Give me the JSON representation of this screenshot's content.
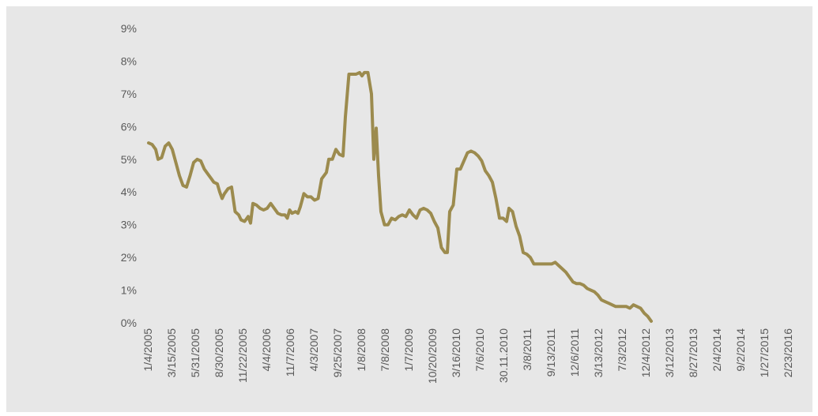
{
  "chart_data": {
    "type": "line",
    "title": "",
    "xlabel": "",
    "ylabel": "",
    "ylim": [
      0,
      9
    ],
    "y_ticks": [
      "0%",
      "1%",
      "2%",
      "3%",
      "4%",
      "5%",
      "6%",
      "7%",
      "8%",
      "9%"
    ],
    "x_tick_labels": [
      "1/4/2005",
      "3/15/2005",
      "5/31/2005",
      "8/30/2005",
      "11/22/2005",
      "4/4/2006",
      "11/7/2006",
      "4/3/2007",
      "9/25/2007",
      "1/8/2008",
      "7/8/2008",
      "1/7/2009",
      "10/20/2009",
      "3/16/2010",
      "7/6/2010",
      "30.11.2010",
      "3/8/2011",
      "9/13/2011",
      "12/6/2011",
      "3/13/2012",
      "7/3/2012",
      "12/4/2012",
      "3/12/2013",
      "8/27/2013",
      "2/4/2014",
      "9/2/2014",
      "1/27/2015",
      "2/23/2016"
    ],
    "grid": false,
    "legend": "none",
    "series_color": "#9C8B4E",
    "series": [
      {
        "values": [
          [
            0,
            5.5
          ],
          [
            0.15,
            5.45
          ],
          [
            0.3,
            5.3
          ],
          [
            0.4,
            5.0
          ],
          [
            0.55,
            5.05
          ],
          [
            0.7,
            5.4
          ],
          [
            0.85,
            5.5
          ],
          [
            1.0,
            5.3
          ],
          [
            1.15,
            4.9
          ],
          [
            1.3,
            4.5
          ],
          [
            1.45,
            4.2
          ],
          [
            1.6,
            4.15
          ],
          [
            1.75,
            4.5
          ],
          [
            1.9,
            4.9
          ],
          [
            2.05,
            5.0
          ],
          [
            2.2,
            4.95
          ],
          [
            2.35,
            4.7
          ],
          [
            2.5,
            4.55
          ],
          [
            2.65,
            4.4
          ],
          [
            2.75,
            4.3
          ],
          [
            2.9,
            4.25
          ],
          [
            3.0,
            4.0
          ],
          [
            3.1,
            3.8
          ],
          [
            3.2,
            3.95
          ],
          [
            3.35,
            4.1
          ],
          [
            3.5,
            4.15
          ],
          [
            3.65,
            3.4
          ],
          [
            3.8,
            3.3
          ],
          [
            3.9,
            3.15
          ],
          [
            4.05,
            3.1
          ],
          [
            4.2,
            3.25
          ],
          [
            4.3,
            3.05
          ],
          [
            4.4,
            3.65
          ],
          [
            4.55,
            3.6
          ],
          [
            4.7,
            3.5
          ],
          [
            4.85,
            3.45
          ],
          [
            5.0,
            3.5
          ],
          [
            5.15,
            3.65
          ],
          [
            5.3,
            3.5
          ],
          [
            5.45,
            3.35
          ],
          [
            5.6,
            3.3
          ],
          [
            5.75,
            3.3
          ],
          [
            5.85,
            3.2
          ],
          [
            5.95,
            3.45
          ],
          [
            6.05,
            3.35
          ],
          [
            6.2,
            3.4
          ],
          [
            6.3,
            3.35
          ],
          [
            6.4,
            3.55
          ],
          [
            6.55,
            3.95
          ],
          [
            6.7,
            3.85
          ],
          [
            6.85,
            3.85
          ],
          [
            7.0,
            3.75
          ],
          [
            7.15,
            3.8
          ],
          [
            7.3,
            4.4
          ],
          [
            7.5,
            4.6
          ],
          [
            7.6,
            5.0
          ],
          [
            7.75,
            5.0
          ],
          [
            7.9,
            5.3
          ],
          [
            8.05,
            5.15
          ],
          [
            8.2,
            5.1
          ],
          [
            8.3,
            6.3
          ],
          [
            8.45,
            7.6
          ],
          [
            8.6,
            7.6
          ],
          [
            8.75,
            7.6
          ],
          [
            8.9,
            7.65
          ],
          [
            9.0,
            7.55
          ],
          [
            9.1,
            7.65
          ],
          [
            9.25,
            7.65
          ],
          [
            9.4,
            7.0
          ],
          [
            9.5,
            5.0
          ],
          [
            9.6,
            5.95
          ],
          [
            9.7,
            4.5
          ],
          [
            9.8,
            3.4
          ],
          [
            9.95,
            3.0
          ],
          [
            10.1,
            3.0
          ],
          [
            10.25,
            3.2
          ],
          [
            10.4,
            3.15
          ],
          [
            10.55,
            3.25
          ],
          [
            10.7,
            3.3
          ],
          [
            10.85,
            3.25
          ],
          [
            11.0,
            3.45
          ],
          [
            11.15,
            3.3
          ],
          [
            11.3,
            3.2
          ],
          [
            11.45,
            3.45
          ],
          [
            11.6,
            3.5
          ],
          [
            11.75,
            3.45
          ],
          [
            11.9,
            3.35
          ],
          [
            12.05,
            3.1
          ],
          [
            12.2,
            2.9
          ],
          [
            12.35,
            2.3
          ],
          [
            12.5,
            2.15
          ],
          [
            12.6,
            2.15
          ],
          [
            12.7,
            3.4
          ],
          [
            12.85,
            3.6
          ],
          [
            13.0,
            4.7
          ],
          [
            13.15,
            4.7
          ],
          [
            13.3,
            4.95
          ],
          [
            13.45,
            5.2
          ],
          [
            13.6,
            5.25
          ],
          [
            13.75,
            5.2
          ],
          [
            13.9,
            5.1
          ],
          [
            14.05,
            4.95
          ],
          [
            14.2,
            4.65
          ],
          [
            14.35,
            4.5
          ],
          [
            14.5,
            4.3
          ],
          [
            14.65,
            3.8
          ],
          [
            14.8,
            3.2
          ],
          [
            14.95,
            3.2
          ],
          [
            15.1,
            3.1
          ],
          [
            15.2,
            3.5
          ],
          [
            15.35,
            3.4
          ],
          [
            15.5,
            2.95
          ],
          [
            15.65,
            2.65
          ],
          [
            15.8,
            2.15
          ],
          [
            15.95,
            2.1
          ],
          [
            16.1,
            2.0
          ],
          [
            16.25,
            1.8
          ],
          [
            16.4,
            1.8
          ],
          [
            16.55,
            1.8
          ],
          [
            16.7,
            1.8
          ],
          [
            16.85,
            1.8
          ],
          [
            17.0,
            1.8
          ],
          [
            17.15,
            1.85
          ],
          [
            17.3,
            1.75
          ],
          [
            17.45,
            1.65
          ],
          [
            17.6,
            1.55
          ],
          [
            17.75,
            1.4
          ],
          [
            17.9,
            1.25
          ],
          [
            18.05,
            1.2
          ],
          [
            18.2,
            1.2
          ],
          [
            18.35,
            1.15
          ],
          [
            18.5,
            1.05
          ],
          [
            18.65,
            1.0
          ],
          [
            18.8,
            0.95
          ],
          [
            18.95,
            0.85
          ],
          [
            19.1,
            0.7
          ],
          [
            19.25,
            0.65
          ],
          [
            19.4,
            0.6
          ],
          [
            19.55,
            0.55
          ],
          [
            19.7,
            0.5
          ],
          [
            19.85,
            0.5
          ],
          [
            20.0,
            0.5
          ],
          [
            20.15,
            0.5
          ],
          [
            20.3,
            0.45
          ],
          [
            20.45,
            0.55
          ],
          [
            20.6,
            0.5
          ],
          [
            20.75,
            0.45
          ],
          [
            20.9,
            0.3
          ],
          [
            21.05,
            0.2
          ],
          [
            21.2,
            0.05
          ]
        ]
      }
    ]
  }
}
